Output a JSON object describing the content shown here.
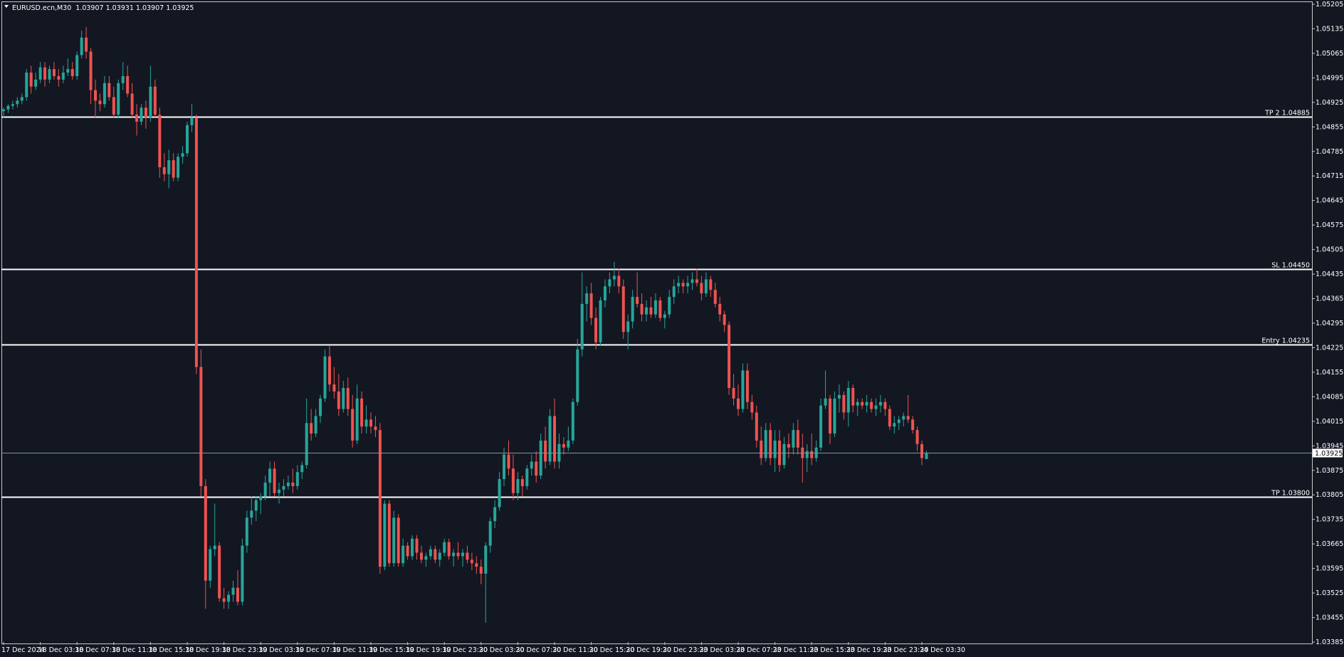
{
  "header": {
    "symbol": "EURUSD.ecn,M30",
    "ohlc": "1.03907 1.03931 1.03907 1.03925"
  },
  "colors": {
    "background": "#131722",
    "bull": "#26a69a",
    "bear": "#ef5350",
    "level_line": "#ffffff",
    "axis_text": "#ffffff"
  },
  "chart_data": {
    "type": "candlestick",
    "title": "EURUSD.ecn,M30",
    "ylim": [
      1.03385,
      1.05205
    ],
    "y_ticks": [
      "1.05205",
      "1.05135",
      "1.05065",
      "1.04995",
      "1.04925",
      "1.04855",
      "1.04785",
      "1.04715",
      "1.04645",
      "1.04575",
      "1.04505",
      "1.04435",
      "1.04365",
      "1.04295",
      "1.04225",
      "1.04155",
      "1.04085",
      "1.04015",
      "1.03945",
      "1.03875",
      "1.03805",
      "1.03735",
      "1.03665",
      "1.03595",
      "1.03525",
      "1.03455",
      "1.03385"
    ],
    "x_ticks": [
      "17 Dec 2024",
      "18 Dec 03:30",
      "18 Dec 07:30",
      "18 Dec 11:30",
      "18 Dec 15:30",
      "18 Dec 19:30",
      "18 Dec 23:30",
      "19 Dec 03:30",
      "19 Dec 07:30",
      "19 Dec 11:30",
      "19 Dec 15:30",
      "19 Dec 19:30",
      "19 Dec 23:30",
      "20 Dec 03:30",
      "20 Dec 07:30",
      "20 Dec 11:30",
      "20 Dec 15:30",
      "20 Dec 19:30",
      "20 Dec 23:30",
      "23 Dec 03:30",
      "23 Dec 07:30",
      "23 Dec 11:30",
      "23 Dec 15:30",
      "23 Dec 19:30",
      "23 Dec 23:30",
      "24 Dec 03:30"
    ],
    "candles_per_tick": 8,
    "current_price": "1.03925",
    "levels": [
      {
        "label": "TP 2 1.04885",
        "price": 1.04885
      },
      {
        "label": "SL 1.04450",
        "price": 1.0445
      },
      {
        "label": "Entry 1.04235",
        "price": 1.04235
      },
      {
        "label": "TP 1.03800",
        "price": 1.038
      }
    ],
    "ohlc": [
      [
        1.049,
        1.0491,
        1.0488,
        1.04905
      ],
      [
        1.04905,
        1.0492,
        1.04895,
        1.04915
      ],
      [
        1.04915,
        1.0493,
        1.04905,
        1.0492
      ],
      [
        1.0492,
        1.0494,
        1.0491,
        1.0493
      ],
      [
        1.0493,
        1.0495,
        1.0492,
        1.0494
      ],
      [
        1.0494,
        1.0502,
        1.0493,
        1.0501
      ],
      [
        1.0501,
        1.0503,
        1.0495,
        1.0497
      ],
      [
        1.0497,
        1.0501,
        1.0496,
        1.0499
      ],
      [
        1.0499,
        1.0504,
        1.0498,
        1.05025
      ],
      [
        1.05025,
        1.0504,
        1.0497,
        1.0499
      ],
      [
        1.0499,
        1.0503,
        1.0498,
        1.0502
      ],
      [
        1.0502,
        1.0504,
        1.0499,
        1.05
      ],
      [
        1.05,
        1.0502,
        1.0497,
        1.0499
      ],
      [
        1.0499,
        1.0503,
        1.0498,
        1.0501
      ],
      [
        1.0501,
        1.0505,
        1.05,
        1.0502
      ],
      [
        1.0502,
        1.0504,
        1.0499,
        1.05
      ],
      [
        1.05,
        1.0507,
        1.0499,
        1.0506
      ],
      [
        1.0506,
        1.0513,
        1.0505,
        1.0511
      ],
      [
        1.0511,
        1.0514,
        1.0505,
        1.0507
      ],
      [
        1.0507,
        1.0508,
        1.0492,
        1.0496
      ],
      [
        1.0496,
        1.0499,
        1.0488,
        1.0493
      ],
      [
        1.0493,
        1.0495,
        1.049,
        1.0492
      ],
      [
        1.0492,
        1.05,
        1.0491,
        1.0498
      ],
      [
        1.0498,
        1.05,
        1.0493,
        1.0494
      ],
      [
        1.0494,
        1.0497,
        1.0488,
        1.0489
      ],
      [
        1.0489,
        1.0499,
        1.0488,
        1.0498
      ],
      [
        1.0498,
        1.0504,
        1.0496,
        1.05
      ],
      [
        1.05,
        1.0503,
        1.0494,
        1.0495
      ],
      [
        1.0495,
        1.0498,
        1.0488,
        1.0489
      ],
      [
        1.0489,
        1.0492,
        1.0483,
        1.0487
      ],
      [
        1.0487,
        1.0492,
        1.0486,
        1.0491
      ],
      [
        1.0491,
        1.0493,
        1.0485,
        1.0488
      ],
      [
        1.0488,
        1.0503,
        1.0487,
        1.0497
      ],
      [
        1.0497,
        1.0499,
        1.0488,
        1.0489
      ],
      [
        1.0489,
        1.0491,
        1.0471,
        1.0474
      ],
      [
        1.0474,
        1.0478,
        1.047,
        1.0472
      ],
      [
        1.0472,
        1.0479,
        1.0468,
        1.0476
      ],
      [
        1.0476,
        1.0478,
        1.047,
        1.0471
      ],
      [
        1.0471,
        1.0478,
        1.047,
        1.0477
      ],
      [
        1.0477,
        1.048,
        1.0475,
        1.0478
      ],
      [
        1.0478,
        1.0487,
        1.0477,
        1.0486
      ],
      [
        1.0486,
        1.0492,
        1.0484,
        1.0488
      ],
      [
        1.0488,
        1.0489,
        1.0415,
        1.0417
      ],
      [
        1.0417,
        1.0422,
        1.038,
        1.0383
      ],
      [
        1.0383,
        1.0385,
        1.0348,
        1.0356
      ],
      [
        1.0356,
        1.0366,
        1.0354,
        1.0365
      ],
      [
        1.0365,
        1.0378,
        1.0363,
        1.0366
      ],
      [
        1.0366,
        1.0367,
        1.035,
        1.0351
      ],
      [
        1.0351,
        1.0354,
        1.0348,
        1.035
      ],
      [
        1.035,
        1.0353,
        1.0348,
        1.0352
      ],
      [
        1.0352,
        1.0356,
        1.035,
        1.0354
      ],
      [
        1.0354,
        1.0359,
        1.0349,
        1.035
      ],
      [
        1.035,
        1.0368,
        1.0349,
        1.0366
      ],
      [
        1.0366,
        1.0376,
        1.0364,
        1.0374
      ],
      [
        1.0374,
        1.038,
        1.0372,
        1.0376
      ],
      [
        1.0376,
        1.038,
        1.0373,
        1.0379
      ],
      [
        1.0379,
        1.0381,
        1.0375,
        1.038
      ],
      [
        1.038,
        1.0386,
        1.0379,
        1.0384
      ],
      [
        1.0384,
        1.039,
        1.038,
        1.0388
      ],
      [
        1.0388,
        1.039,
        1.038,
        1.0381
      ],
      [
        1.0381,
        1.0384,
        1.0378,
        1.0382
      ],
      [
        1.0382,
        1.0385,
        1.038,
        1.0383
      ],
      [
        1.0383,
        1.0386,
        1.0382,
        1.0384
      ],
      [
        1.0384,
        1.0388,
        1.0381,
        1.0383
      ],
      [
        1.0383,
        1.0389,
        1.0382,
        1.0387
      ],
      [
        1.0387,
        1.039,
        1.0385,
        1.0389
      ],
      [
        1.0389,
        1.0408,
        1.0388,
        1.0401
      ],
      [
        1.0401,
        1.0405,
        1.0396,
        1.0398
      ],
      [
        1.0398,
        1.0405,
        1.0397,
        1.0403
      ],
      [
        1.0403,
        1.0409,
        1.0401,
        1.0408
      ],
      [
        1.0408,
        1.0422,
        1.0407,
        1.042
      ],
      [
        1.042,
        1.0423,
        1.041,
        1.0412
      ],
      [
        1.0412,
        1.0417,
        1.0408,
        1.041
      ],
      [
        1.041,
        1.0415,
        1.0403,
        1.0405
      ],
      [
        1.0405,
        1.0413,
        1.0404,
        1.0411
      ],
      [
        1.0411,
        1.0414,
        1.0403,
        1.0405
      ],
      [
        1.0405,
        1.0409,
        1.0394,
        1.0396
      ],
      [
        1.0396,
        1.0412,
        1.0395,
        1.0408
      ],
      [
        1.0408,
        1.041,
        1.0398,
        1.04
      ],
      [
        1.04,
        1.0406,
        1.0398,
        1.0402
      ],
      [
        1.0402,
        1.0404,
        1.0398,
        1.04
      ],
      [
        1.04,
        1.0403,
        1.0397,
        1.0399
      ],
      [
        1.0399,
        1.0401,
        1.0358,
        1.036
      ],
      [
        1.036,
        1.0379,
        1.0359,
        1.0378
      ],
      [
        1.0378,
        1.0379,
        1.036,
        1.0361
      ],
      [
        1.0361,
        1.0376,
        1.036,
        1.0374
      ],
      [
        1.0374,
        1.0375,
        1.036,
        1.0361
      ],
      [
        1.0361,
        1.0368,
        1.036,
        1.0366
      ],
      [
        1.0366,
        1.0367,
        1.0362,
        1.0363
      ],
      [
        1.0363,
        1.0369,
        1.0362,
        1.0368
      ],
      [
        1.0368,
        1.0369,
        1.0362,
        1.0364
      ],
      [
        1.0364,
        1.0366,
        1.0361,
        1.0362
      ],
      [
        1.0362,
        1.0364,
        1.036,
        1.0363
      ],
      [
        1.0363,
        1.0366,
        1.0362,
        1.0365
      ],
      [
        1.0365,
        1.0366,
        1.0361,
        1.0362
      ],
      [
        1.0362,
        1.0365,
        1.036,
        1.0364
      ],
      [
        1.0364,
        1.0368,
        1.0363,
        1.0367
      ],
      [
        1.0367,
        1.0368,
        1.0362,
        1.0363
      ],
      [
        1.0363,
        1.0365,
        1.036,
        1.0364
      ],
      [
        1.0364,
        1.0367,
        1.0362,
        1.0363
      ],
      [
        1.0363,
        1.0365,
        1.036,
        1.0364
      ],
      [
        1.0364,
        1.0366,
        1.0361,
        1.0362
      ],
      [
        1.0362,
        1.0364,
        1.0359,
        1.0361
      ],
      [
        1.0361,
        1.0363,
        1.0358,
        1.036
      ],
      [
        1.036,
        1.0362,
        1.0355,
        1.0358
      ],
      [
        1.0358,
        1.0367,
        1.0344,
        1.0366
      ],
      [
        1.0366,
        1.0374,
        1.0364,
        1.0373
      ],
      [
        1.0373,
        1.0379,
        1.0371,
        1.0377
      ],
      [
        1.0377,
        1.0387,
        1.0376,
        1.0385
      ],
      [
        1.0385,
        1.0394,
        1.0383,
        1.0392
      ],
      [
        1.0392,
        1.0396,
        1.0386,
        1.0388
      ],
      [
        1.0388,
        1.0392,
        1.0379,
        1.0381
      ],
      [
        1.0381,
        1.0387,
        1.0379,
        1.0385
      ],
      [
        1.0385,
        1.0386,
        1.038,
        1.0383
      ],
      [
        1.0383,
        1.0389,
        1.0382,
        1.0388
      ],
      [
        1.0388,
        1.0392,
        1.0386,
        1.039
      ],
      [
        1.039,
        1.0393,
        1.0384,
        1.0386
      ],
      [
        1.0386,
        1.0398,
        1.0385,
        1.0396
      ],
      [
        1.0396,
        1.04,
        1.0388,
        1.039
      ],
      [
        1.039,
        1.0405,
        1.0389,
        1.0403
      ],
      [
        1.0403,
        1.0408,
        1.0388,
        1.039
      ],
      [
        1.039,
        1.0398,
        1.0388,
        1.0395
      ],
      [
        1.0395,
        1.0397,
        1.0392,
        1.0394
      ],
      [
        1.0394,
        1.04,
        1.0393,
        1.0396
      ],
      [
        1.0396,
        1.0408,
        1.0395,
        1.0407
      ],
      [
        1.0407,
        1.0425,
        1.0406,
        1.0422
      ],
      [
        1.0422,
        1.0444,
        1.042,
        1.0435
      ],
      [
        1.0435,
        1.044,
        1.043,
        1.0438
      ],
      [
        1.0438,
        1.0441,
        1.0429,
        1.0431
      ],
      [
        1.0431,
        1.0434,
        1.0422,
        1.0424
      ],
      [
        1.0424,
        1.0437,
        1.0423,
        1.0436
      ],
      [
        1.0436,
        1.0442,
        1.0434,
        1.044
      ],
      [
        1.044,
        1.0444,
        1.0438,
        1.0442
      ],
      [
        1.0442,
        1.0447,
        1.044,
        1.0443
      ],
      [
        1.0443,
        1.0445,
        1.0438,
        1.044
      ],
      [
        1.044,
        1.0442,
        1.0425,
        1.0427
      ],
      [
        1.0427,
        1.0432,
        1.0422,
        1.043
      ],
      [
        1.043,
        1.0439,
        1.0428,
        1.0437
      ],
      [
        1.0437,
        1.0444,
        1.0434,
        1.0435
      ],
      [
        1.0435,
        1.0438,
        1.043,
        1.0432
      ],
      [
        1.0432,
        1.0436,
        1.043,
        1.0434
      ],
      [
        1.0434,
        1.0437,
        1.0431,
        1.0432
      ],
      [
        1.0432,
        1.0438,
        1.0431,
        1.0436
      ],
      [
        1.0436,
        1.0437,
        1.043,
        1.0431
      ],
      [
        1.0431,
        1.0433,
        1.0428,
        1.0432
      ],
      [
        1.0432,
        1.0439,
        1.0431,
        1.0437
      ],
      [
        1.0437,
        1.0442,
        1.0435,
        1.044
      ],
      [
        1.044,
        1.0443,
        1.0438,
        1.0441
      ],
      [
        1.0441,
        1.0442,
        1.0438,
        1.044
      ],
      [
        1.044,
        1.0443,
        1.0438,
        1.0441
      ],
      [
        1.0441,
        1.0444,
        1.0439,
        1.0442
      ],
      [
        1.0442,
        1.0445,
        1.044,
        1.0441
      ],
      [
        1.0441,
        1.0443,
        1.0436,
        1.0438
      ],
      [
        1.0438,
        1.0444,
        1.0437,
        1.0442
      ],
      [
        1.0442,
        1.0443,
        1.0437,
        1.0439
      ],
      [
        1.0439,
        1.0441,
        1.0434,
        1.0435
      ],
      [
        1.0435,
        1.0437,
        1.043,
        1.0432
      ],
      [
        1.0432,
        1.0433,
        1.0427,
        1.0429
      ],
      [
        1.0429,
        1.043,
        1.0409,
        1.0411
      ],
      [
        1.0411,
        1.0415,
        1.0406,
        1.0408
      ],
      [
        1.0408,
        1.0412,
        1.0403,
        1.0405
      ],
      [
        1.0405,
        1.0418,
        1.0404,
        1.0416
      ],
      [
        1.0416,
        1.0418,
        1.0405,
        1.0407
      ],
      [
        1.0407,
        1.0409,
        1.0402,
        1.0404
      ],
      [
        1.0404,
        1.0406,
        1.0394,
        1.0396
      ],
      [
        1.0396,
        1.04,
        1.0389,
        1.0391
      ],
      [
        1.0391,
        1.0401,
        1.039,
        1.0399
      ],
      [
        1.0399,
        1.0401,
        1.0389,
        1.0391
      ],
      [
        1.0391,
        1.0399,
        1.0387,
        1.0396
      ],
      [
        1.0396,
        1.0399,
        1.0387,
        1.0389
      ],
      [
        1.0389,
        1.0397,
        1.0388,
        1.0395
      ],
      [
        1.0395,
        1.0398,
        1.0391,
        1.0394
      ],
      [
        1.0394,
        1.0401,
        1.0392,
        1.0399
      ],
      [
        1.0399,
        1.0402,
        1.0392,
        1.0394
      ],
      [
        1.0394,
        1.0398,
        1.0384,
        1.0391
      ],
      [
        1.0391,
        1.0395,
        1.0387,
        1.0393
      ],
      [
        1.0393,
        1.0398,
        1.0389,
        1.0391
      ],
      [
        1.0391,
        1.0396,
        1.039,
        1.0394
      ],
      [
        1.0394,
        1.0408,
        1.0393,
        1.0406
      ],
      [
        1.0406,
        1.0416,
        1.0405,
        1.0408
      ],
      [
        1.0408,
        1.0409,
        1.0395,
        1.0398
      ],
      [
        1.0398,
        1.041,
        1.0397,
        1.0408
      ],
      [
        1.0408,
        1.0412,
        1.0404,
        1.0409
      ],
      [
        1.0409,
        1.041,
        1.0402,
        1.0404
      ],
      [
        1.0404,
        1.0413,
        1.04,
        1.0411
      ],
      [
        1.0411,
        1.0412,
        1.0404,
        1.0406
      ],
      [
        1.0406,
        1.0408,
        1.0403,
        1.0407
      ],
      [
        1.0407,
        1.0408,
        1.0405,
        1.0406
      ],
      [
        1.0406,
        1.0409,
        1.0404,
        1.0407
      ],
      [
        1.0407,
        1.0408,
        1.0404,
        1.0405
      ],
      [
        1.0405,
        1.0408,
        1.0403,
        1.0406
      ],
      [
        1.0406,
        1.0409,
        1.0404,
        1.0407
      ],
      [
        1.0407,
        1.0408,
        1.0403,
        1.0405
      ],
      [
        1.0405,
        1.0406,
        1.0399,
        1.04
      ],
      [
        1.04,
        1.0403,
        1.0398,
        1.0401
      ],
      [
        1.0401,
        1.0403,
        1.0399,
        1.0402
      ],
      [
        1.0402,
        1.0404,
        1.04,
        1.0403
      ],
      [
        1.0403,
        1.0409,
        1.0401,
        1.0402
      ],
      [
        1.0402,
        1.0403,
        1.0398,
        1.0399
      ],
      [
        1.0399,
        1.04,
        1.0393,
        1.0395
      ],
      [
        1.0395,
        1.0396,
        1.0389,
        1.0391
      ],
      [
        1.03907,
        1.03931,
        1.03907,
        1.03925
      ]
    ]
  }
}
